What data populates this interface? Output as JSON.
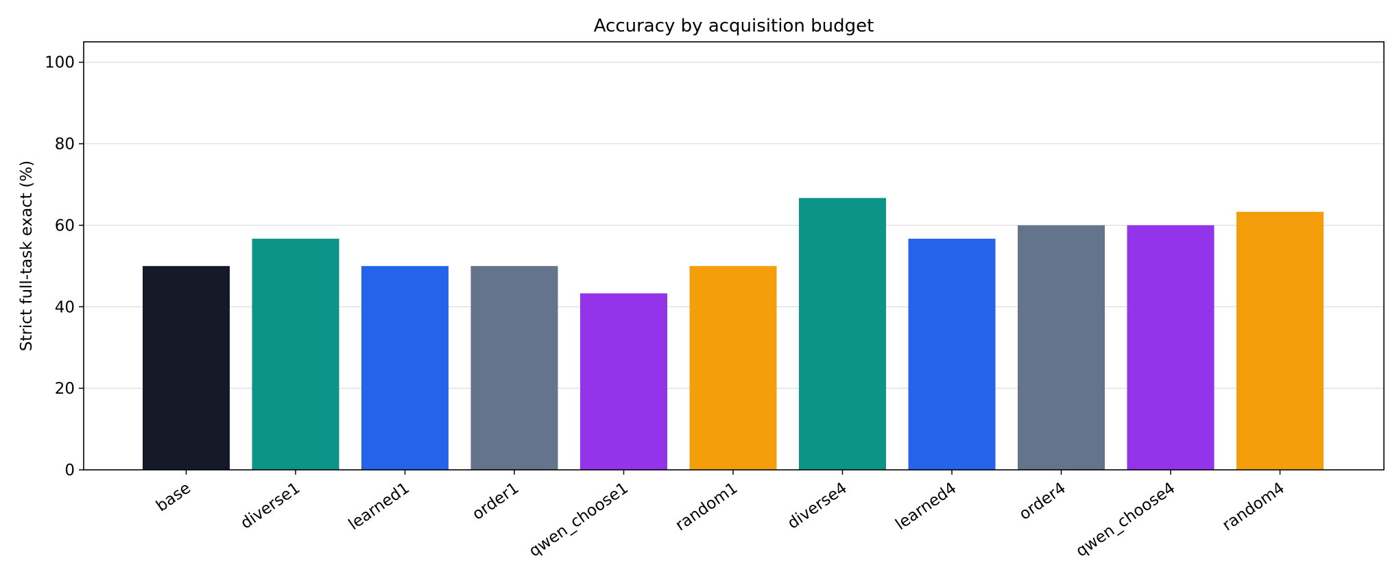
{
  "chart_data": {
    "type": "bar",
    "title": "Accuracy by acquisition budget",
    "xlabel": "",
    "ylabel": "Strict full-task exact (%)",
    "categories": [
      "base",
      "diverse1",
      "learned1",
      "order1",
      "qwen_choose1",
      "random1",
      "diverse4",
      "learned4",
      "order4",
      "qwen_choose4",
      "random4"
    ],
    "values": [
      50.0,
      56.7,
      50.0,
      50.0,
      43.3,
      50.0,
      66.7,
      56.7,
      60.0,
      60.0,
      63.3
    ],
    "colors": [
      "#141a28",
      "#0d9488",
      "#2563eb",
      "#64748b",
      "#9333ea",
      "#f59e0b",
      "#0d9488",
      "#2563eb",
      "#64748b",
      "#9333ea",
      "#f59e0b"
    ],
    "ylim": [
      0,
      105
    ],
    "yticks": [
      0,
      20,
      40,
      60,
      80,
      100
    ],
    "grid": "horizontal",
    "xtick_rotation": -35
  }
}
